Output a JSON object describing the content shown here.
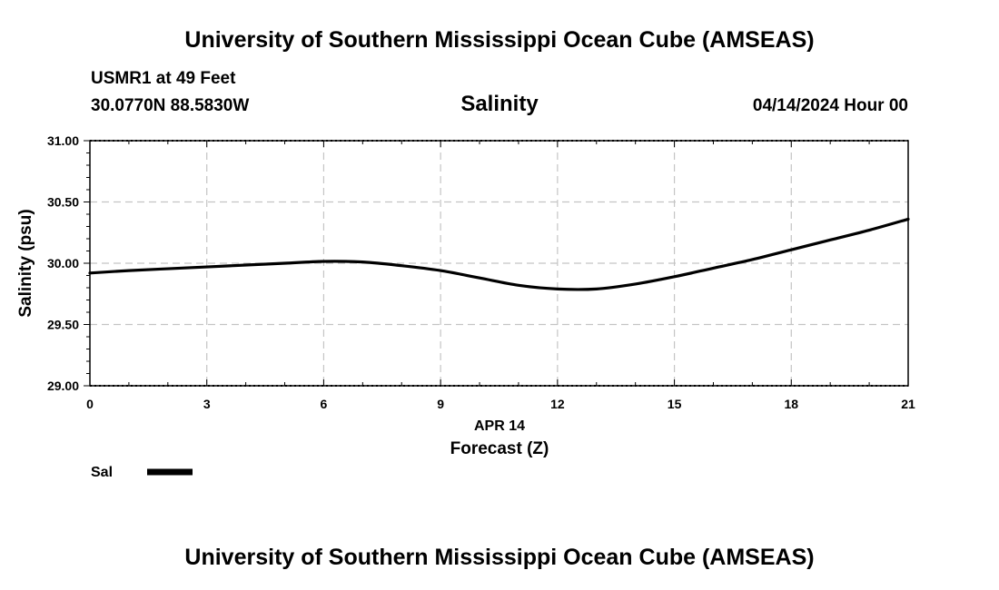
{
  "header": {
    "title": "University of Southern Mississippi Ocean Cube (AMSEAS)",
    "station": "USMR1 at 49 Feet",
    "coords": "30.0770N  88.5830W",
    "datetime": "04/14/2024 Hour 00"
  },
  "footer": {
    "title": "University of Southern Mississippi Ocean Cube (AMSEAS)"
  },
  "chart_data": {
    "type": "line",
    "title": "Salinity",
    "xlabel": "Forecast (Z)",
    "date_label": "APR 14",
    "ylabel": "Salinity (psu)",
    "xlim": [
      0,
      21
    ],
    "ylim": [
      29.0,
      31.0
    ],
    "x_ticks": [
      "0",
      "3",
      "6",
      "9",
      "12",
      "15",
      "18",
      "21"
    ],
    "y_ticks": [
      "29.00",
      "29.50",
      "30.00",
      "30.50",
      "31.00"
    ],
    "grid": true,
    "legend": {
      "position": "bottom-left",
      "entries": [
        {
          "name": "Sal",
          "color": "#000000"
        }
      ]
    },
    "series": [
      {
        "name": "Sal",
        "color": "#000000",
        "x": [
          0,
          1,
          2,
          3,
          4,
          5,
          6,
          7,
          8,
          9,
          10,
          11,
          12,
          13,
          14,
          15,
          16,
          17,
          18,
          19,
          20,
          21
        ],
        "values": [
          29.92,
          29.94,
          29.955,
          29.97,
          29.985,
          30.0,
          30.015,
          30.01,
          29.98,
          29.94,
          29.88,
          29.82,
          29.79,
          29.79,
          29.83,
          29.89,
          29.96,
          30.03,
          30.11,
          30.19,
          30.27,
          30.36
        ]
      }
    ]
  }
}
